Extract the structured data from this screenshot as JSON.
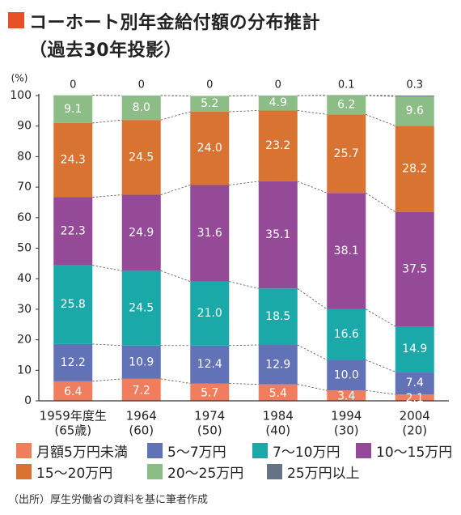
{
  "title": {
    "line1": "コーホート別年金給付額の分布推計",
    "line2": "（過去30年投影）"
  },
  "chart_data": {
    "type": "bar",
    "stacked": true,
    "y_unit_label": "(%)",
    "ylim": [
      0,
      100
    ],
    "yticks": [
      "0",
      "10",
      "20",
      "30",
      "40",
      "50",
      "60",
      "70",
      "80",
      "90",
      "100"
    ],
    "grid": false,
    "categories": [
      {
        "line1": "1959年度生",
        "line2": "(65歳)"
      },
      {
        "line1": "1964",
        "line2": "(60)"
      },
      {
        "line1": "1974",
        "line2": "(50)"
      },
      {
        "line1": "1984",
        "line2": "(40)"
      },
      {
        "line1": "1994",
        "line2": "(30)"
      },
      {
        "line1": "2004",
        "line2": "(20)"
      }
    ],
    "series": [
      {
        "name": "月額5万円未満",
        "color": "#f07e5e",
        "values": [
          6.4,
          7.2,
          5.7,
          5.4,
          3.4,
          2.1
        ]
      },
      {
        "name": "5〜7万円",
        "color": "#6272b6",
        "values": [
          12.2,
          10.9,
          12.4,
          12.9,
          10.0,
          7.4
        ]
      },
      {
        "name": "7〜10万円",
        "color": "#1aa9a8",
        "values": [
          25.8,
          24.5,
          21.0,
          18.5,
          16.6,
          14.9
        ]
      },
      {
        "name": "10〜15万円",
        "color": "#944a96",
        "values": [
          22.3,
          24.9,
          31.6,
          35.1,
          38.1,
          37.5
        ]
      },
      {
        "name": "15〜20万円",
        "color": "#d97332",
        "values": [
          24.3,
          24.5,
          24.0,
          23.2,
          25.7,
          28.2
        ]
      },
      {
        "name": "20〜25万円",
        "color": "#8cbd86",
        "values": [
          9.1,
          8.0,
          5.2,
          4.9,
          6.2,
          9.6
        ]
      },
      {
        "name": "25万円以上",
        "color": "#657484",
        "values": [
          0,
          0,
          0,
          0,
          0.1,
          0.3
        ]
      }
    ],
    "top_labels": [
      "0",
      "0",
      "0",
      "0",
      "0.1",
      "0.3"
    ],
    "segment_labels": [
      [
        "6.4",
        "7.2",
        "5.7",
        "5.4",
        "3.4",
        "2.1"
      ],
      [
        "12.2",
        "10.9",
        "12.4",
        "12.9",
        "10.0",
        "7.4"
      ],
      [
        "25.8",
        "24.5",
        "21.0",
        "18.5",
        "16.6",
        "14.9"
      ],
      [
        "22.3",
        "24.9",
        "31.6",
        "35.1",
        "38.1",
        "37.5"
      ],
      [
        "24.3",
        "24.5",
        "24.0",
        "23.2",
        "25.7",
        "28.2"
      ],
      [
        "9.1",
        "8.0",
        "5.2",
        "4.9",
        "6.2",
        "9.6"
      ]
    ],
    "legend_position": "bottom"
  },
  "source": "（出所）厚生労働省の資料を基に筆者作成"
}
